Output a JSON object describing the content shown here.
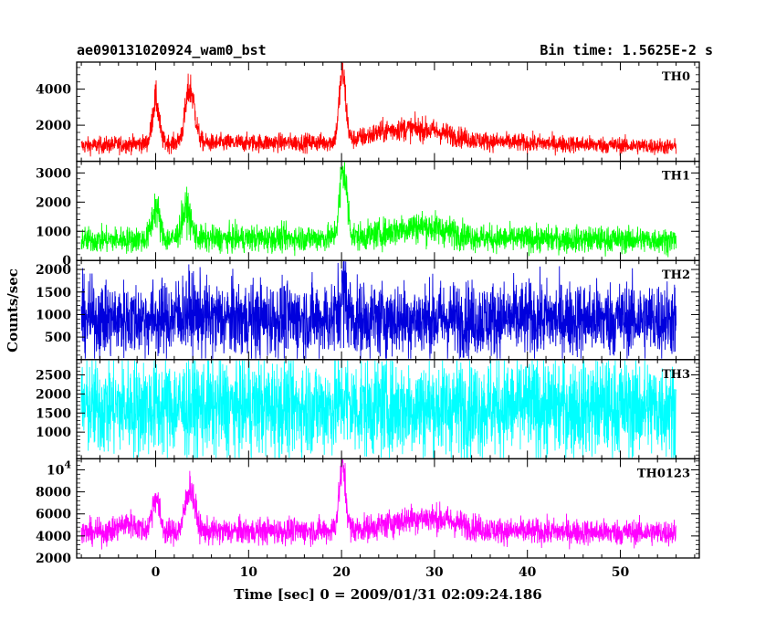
{
  "header": {
    "left": "ae090131020924_wam0_bst",
    "right": "Bin time: 1.5625E-2 s"
  },
  "chart_data": {
    "type": "line",
    "xlabel": "Time [sec] 0 = 2009/01/31 02:09:24.186",
    "ylabel": "Counts/sec",
    "xlim": [
      -8.5,
      58.5
    ],
    "x_range_data": [
      -8,
      56
    ],
    "x_ticks": [
      0,
      10,
      20,
      30,
      40,
      50
    ],
    "x_tick_labels": [
      "0",
      "10",
      "20",
      "30",
      "40",
      "50"
    ],
    "grid": false,
    "panels": [
      {
        "name": "TH0",
        "color": "#ff0000",
        "ylim": [
          0,
          5500
        ],
        "y_ticks": [
          2000,
          4000
        ],
        "y_tick_labels": [
          "2000",
          "4000"
        ],
        "baseline": 1000,
        "noise": 250,
        "peaks": [
          [
            0,
            2400,
            0.35
          ],
          [
            3.7,
            3000,
            0.5
          ],
          [
            20.1,
            3800,
            0.35
          ],
          [
            25,
            400,
            2.5
          ],
          [
            29,
            500,
            3
          ]
        ],
        "envelope": [
          [
            -8,
            850
          ],
          [
            0,
            1000
          ],
          [
            20,
            1050
          ],
          [
            30,
            1150
          ],
          [
            56,
            800
          ]
        ]
      },
      {
        "name": "TH1",
        "color": "#00ff00",
        "ylim": [
          0,
          3400
        ],
        "y_ticks": [
          0,
          1000,
          2000,
          3000
        ],
        "y_tick_labels": [
          "0",
          "1000",
          "2000",
          "3000"
        ],
        "baseline": 750,
        "noise": 230,
        "peaks": [
          [
            0,
            1100,
            0.4
          ],
          [
            3.3,
            1000,
            0.5
          ],
          [
            20.2,
            2300,
            0.4
          ],
          [
            28.5,
            400,
            3
          ]
        ],
        "envelope": [
          [
            -8,
            700
          ],
          [
            20,
            780
          ],
          [
            56,
            700
          ]
        ]
      },
      {
        "name": "TH2",
        "color": "#0000dd",
        "ylim": [
          0,
          2200
        ],
        "y_ticks": [
          500,
          1000,
          1500,
          2000
        ],
        "y_tick_labels": [
          "500",
          "1000",
          "1500",
          "2000"
        ],
        "baseline": 900,
        "noise": 420,
        "peaks": [
          [
            20.2,
            600,
            0.4
          ],
          [
            3.5,
            150,
            1
          ]
        ],
        "envelope": [
          [
            -8,
            900
          ],
          [
            56,
            900
          ]
        ]
      },
      {
        "name": "TH3",
        "color": "#00ffff",
        "ylim": [
          300,
          2900
        ],
        "y_ticks": [
          1000,
          1500,
          2000,
          2500
        ],
        "y_tick_labels": [
          "1000",
          "1500",
          "2000",
          "2500"
        ],
        "baseline": 1650,
        "noise": 650,
        "peaks": [
          [
            20.2,
            250,
            0.4
          ]
        ],
        "envelope": [
          [
            -8,
            1650
          ],
          [
            56,
            1650
          ]
        ]
      },
      {
        "name": "TH0123",
        "color": "#ff00ff",
        "ylim": [
          2000,
          11000
        ],
        "y_ticks": [
          2000,
          4000,
          6000,
          8000,
          10000
        ],
        "y_tick_labels": [
          "2000",
          "4000",
          "6000",
          "8000",
          "10^4"
        ],
        "baseline": 4500,
        "noise": 600,
        "peaks": [
          [
            0,
            3200,
            0.4
          ],
          [
            3.7,
            4000,
            0.5
          ],
          [
            20.1,
            5800,
            0.35
          ],
          [
            29,
            1200,
            3.5
          ],
          [
            -3,
            800,
            1
          ]
        ],
        "envelope": [
          [
            -8,
            4300
          ],
          [
            20,
            4500
          ],
          [
            56,
            4300
          ]
        ]
      }
    ]
  }
}
